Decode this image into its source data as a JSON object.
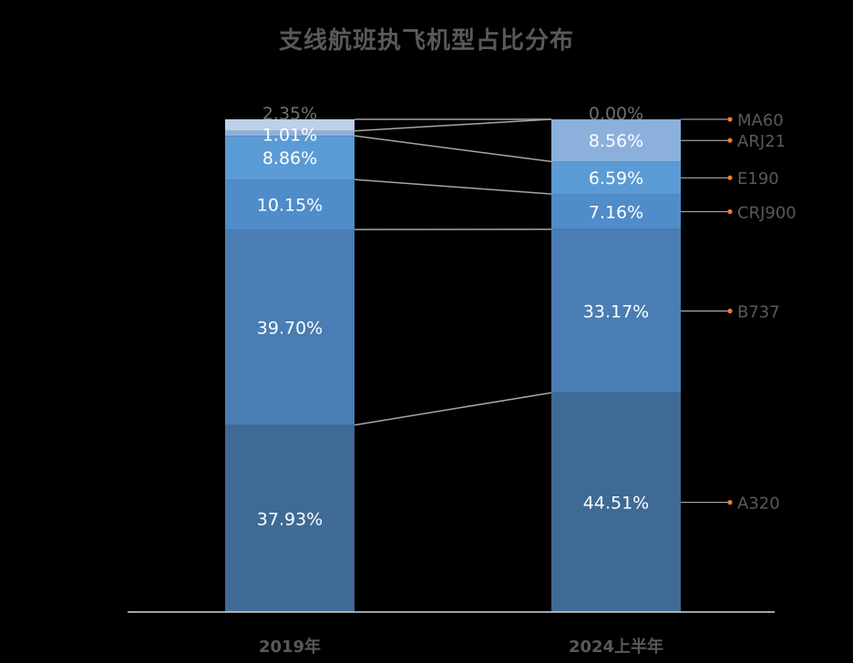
{
  "chart_data": {
    "type": "bar",
    "stacked": true,
    "percent": true,
    "title": "支线航班执飞机型占比分布",
    "categories": [
      "2019年",
      "2024上半年"
    ],
    "series": [
      {
        "name": "A320",
        "values": [
          37.93,
          44.51
        ],
        "labels": [
          "37.93%",
          "44.51%"
        ],
        "color": "#3f6a96"
      },
      {
        "name": "B737",
        "values": [
          39.7,
          33.17
        ],
        "labels": [
          "39.70%",
          "33.17%"
        ],
        "color": "#4a7db3"
      },
      {
        "name": "CRJ900",
        "values": [
          10.15,
          7.16
        ],
        "labels": [
          "10.15%",
          "7.16%"
        ],
        "color": "#4f8cc9"
      },
      {
        "name": "E190",
        "values": [
          8.86,
          6.59
        ],
        "labels": [
          "8.86%",
          "6.59%"
        ],
        "color": "#5b9bd5"
      },
      {
        "name": "ARJ21",
        "values": [
          1.01,
          8.56
        ],
        "labels": [
          "1.01%",
          "8.56%"
        ],
        "color": "#8cb0dc"
      },
      {
        "name": "MA60",
        "values": [
          2.35,
          0.0
        ],
        "labels": [
          "2.35%",
          "0.00%"
        ],
        "color": "#bcd0ea"
      }
    ],
    "ylim": [
      0,
      100
    ],
    "grid": false,
    "legend": "right",
    "background": "#000000",
    "connector_color": "#a6a6a6",
    "legend_marker_color": "#ed7d31"
  }
}
